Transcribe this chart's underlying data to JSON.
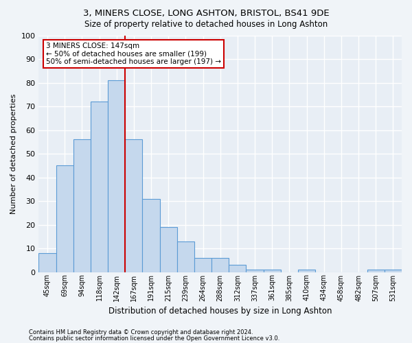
{
  "title": "3, MINERS CLOSE, LONG ASHTON, BRISTOL, BS41 9DE",
  "subtitle": "Size of property relative to detached houses in Long Ashton",
  "xlabel": "Distribution of detached houses by size in Long Ashton",
  "ylabel": "Number of detached properties",
  "bar_color": "#c5d8ed",
  "bar_edge_color": "#5b9bd5",
  "background_color": "#e8eef5",
  "grid_color": "#ffffff",
  "fig_background": "#f0f4f8",
  "categories": [
    "45sqm",
    "69sqm",
    "94sqm",
    "118sqm",
    "142sqm",
    "167sqm",
    "191sqm",
    "215sqm",
    "239sqm",
    "264sqm",
    "288sqm",
    "312sqm",
    "337sqm",
    "361sqm",
    "385sqm",
    "410sqm",
    "434sqm",
    "458sqm",
    "482sqm",
    "507sqm",
    "531sqm"
  ],
  "values": [
    8,
    45,
    56,
    72,
    81,
    56,
    31,
    19,
    13,
    6,
    6,
    3,
    1,
    1,
    0,
    1,
    0,
    0,
    0,
    1,
    1
  ],
  "ylim": [
    0,
    100
  ],
  "yticks": [
    0,
    10,
    20,
    30,
    40,
    50,
    60,
    70,
    80,
    90,
    100
  ],
  "vline_x": 4.5,
  "vline_color": "#cc0000",
  "annotation_text": "3 MINERS CLOSE: 147sqm\n← 50% of detached houses are smaller (199)\n50% of semi-detached houses are larger (197) →",
  "annotation_box_color": "#ffffff",
  "annotation_box_edge": "#cc0000",
  "footer_line1": "Contains HM Land Registry data © Crown copyright and database right 2024.",
  "footer_line2": "Contains public sector information licensed under the Open Government Licence v3.0."
}
